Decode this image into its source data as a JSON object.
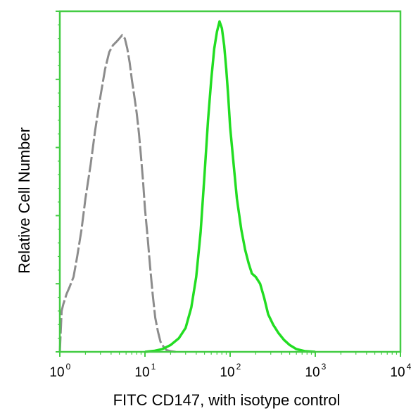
{
  "chart_data": {
    "type": "histogram",
    "xlabel": "FITC  CD147, with isotype control",
    "ylabel": "Relative Cell Number",
    "x_scale": "log",
    "xlim": [
      1,
      10000
    ],
    "ylim": [
      0,
      100
    ],
    "x_tick_labels": [
      {
        "value": 1,
        "base": "10",
        "exp": "0"
      },
      {
        "value": 10,
        "base": "10",
        "exp": "1"
      },
      {
        "value": 100,
        "base": "10",
        "exp": "2"
      },
      {
        "value": 1000,
        "base": "10",
        "exp": "3"
      },
      {
        "value": 10000,
        "base": "10",
        "exp": "4"
      }
    ],
    "y_ticks": [
      0,
      20,
      40,
      60,
      80,
      100
    ],
    "series": [
      {
        "color": "#8c8c8c",
        "style": "dashed",
        "x": [
          1.0,
          1.05,
          1.1,
          1.2,
          1.3,
          1.45,
          1.6,
          1.8,
          2.0,
          2.3,
          2.6,
          3.0,
          3.4,
          3.8,
          4.2,
          4.6,
          5.0,
          5.4,
          5.8,
          6.2,
          6.6,
          7.0,
          7.5,
          8.0,
          8.5,
          9.0,
          9.5,
          10.0,
          10.7,
          11.5,
          12.3,
          13.2,
          14.2,
          15.2,
          16.5,
          18.0,
          20.0,
          23.0
        ],
        "y": [
          0,
          12,
          14,
          17,
          19,
          22,
          28,
          36,
          45,
          55,
          65,
          75,
          83,
          88,
          90,
          91,
          92,
          93,
          92,
          89,
          85,
          80,
          75,
          70,
          64,
          57,
          50,
          42,
          34,
          25,
          17,
          10,
          6,
          3,
          1.5,
          0.5,
          0.2,
          0
        ]
      },
      {
        "color": "#22dd22",
        "style": "solid",
        "x": [
          10.0,
          13.0,
          16.0,
          20.0,
          25.0,
          30.0,
          35.0,
          40.0,
          45.0,
          50.0,
          55.0,
          60.0,
          65.0,
          70.0,
          75.0,
          80.0,
          85.0,
          90.0,
          95.0,
          100.0,
          110.0,
          120.0,
          135.0,
          150.0,
          165.0,
          180.0,
          200.0,
          225.0,
          250.0,
          280.0,
          320.0,
          370.0,
          430.0,
          500.0,
          600.0,
          750.0,
          1000.0
        ],
        "y": [
          0,
          0.3,
          0.8,
          2,
          4,
          7,
          13,
          22,
          35,
          52,
          68,
          80,
          89,
          94,
          97,
          95,
          90,
          83,
          75,
          66,
          55,
          45,
          36,
          30,
          26,
          23,
          22,
          20,
          16,
          11,
          8,
          5.5,
          3.5,
          2,
          0.8,
          0.2,
          0
        ]
      }
    ]
  }
}
